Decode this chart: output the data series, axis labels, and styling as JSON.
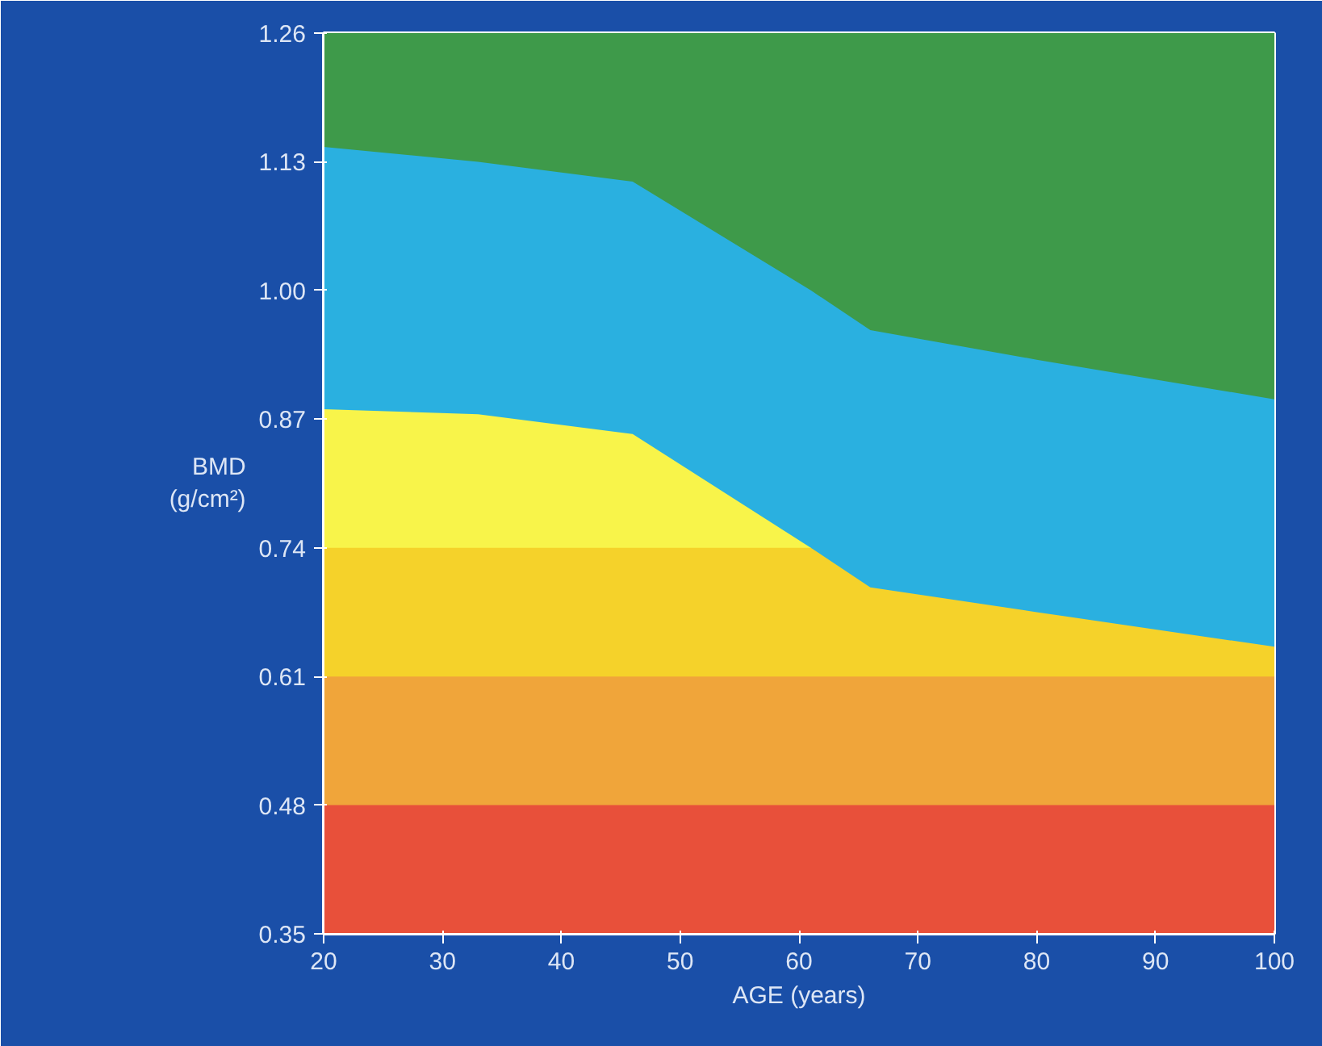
{
  "chart_data": {
    "type": "area",
    "xlabel": "AGE (years)",
    "ylabel": "BMD\n(g/cm²)",
    "x": [
      20,
      33,
      46,
      61,
      66,
      80,
      100
    ],
    "series": [
      {
        "color": "#3e9a4a",
        "values": [
          1.26,
          1.26,
          1.26,
          1.26,
          1.26,
          1.26,
          1.26
        ]
      },
      {
        "color": "#2ab0e0",
        "values": [
          1.145,
          1.13,
          1.11,
          1.0,
          0.96,
          0.93,
          0.89
        ]
      },
      {
        "color": "#f8f44a",
        "values": [
          0.88,
          0.875,
          0.855,
          0.74,
          null,
          null,
          null
        ]
      },
      {
        "color": "#f5d22a",
        "values": [
          0.74,
          0.74,
          0.74,
          0.74,
          0.7,
          0.675,
          0.64
        ]
      },
      {
        "color": "#f0a53a",
        "values": [
          0.61,
          0.61,
          0.61,
          0.61,
          0.61,
          0.61,
          0.61
        ]
      },
      {
        "color": "#e8503a",
        "values": [
          0.48,
          0.48,
          0.48,
          0.48,
          0.48,
          0.48,
          0.48
        ]
      }
    ],
    "xlim": [
      20,
      100
    ],
    "ylim": [
      0.35,
      1.26
    ],
    "xticks": [
      20,
      30,
      40,
      50,
      60,
      70,
      80,
      90,
      100
    ],
    "yticks": [
      {
        "value": 0.35,
        "label": "0.35"
      },
      {
        "value": 0.48,
        "label": "0.48"
      },
      {
        "value": 0.61,
        "label": "0.61"
      },
      {
        "value": 0.74,
        "label": "0.74"
      },
      {
        "value": 0.87,
        "label": "0.87"
      },
      {
        "value": 1.0,
        "label": "1.00"
      },
      {
        "value": 1.13,
        "label": "1.13"
      },
      {
        "value": 1.26,
        "label": "1.26"
      }
    ]
  }
}
